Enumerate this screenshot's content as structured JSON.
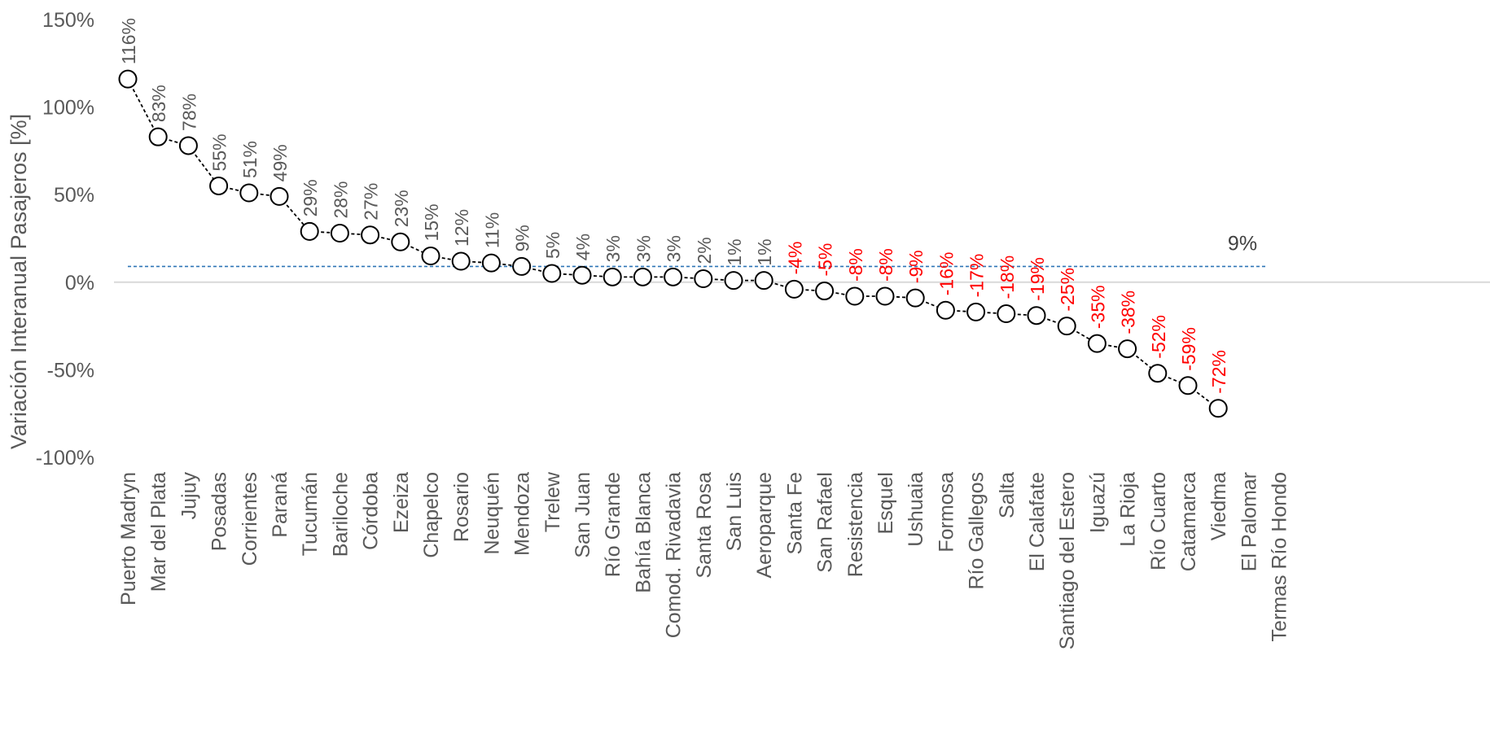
{
  "chart_data": {
    "type": "line",
    "title": "",
    "xlabel": "",
    "ylabel": "Variación Interanual Pasajeros [%]",
    "ylim": [
      -100,
      150
    ],
    "yticks": [
      -100,
      -50,
      0,
      50,
      100,
      150
    ],
    "ytick_labels": [
      "-100%",
      "-50%",
      "0%",
      "50%",
      "100%",
      "150%"
    ],
    "grid": false,
    "categories": [
      "Puerto Madryn",
      "Mar del Plata",
      "Jujuy",
      "Posadas",
      "Corrientes",
      "Paraná",
      "Tucumán",
      "Bariloche",
      "Córdoba",
      "Ezeiza",
      "Chapelco",
      "Rosario",
      "Neuquén",
      "Mendoza",
      "Trelew",
      "San Juan",
      "Río Grande",
      "Bahía Blanca",
      "Comod. Rivadavia",
      "Santa Rosa",
      "San Luis",
      "Aeroparque",
      "Santa Fe",
      "San Rafael",
      "Resistencia",
      "Esquel",
      "Ushuaia",
      "Formosa",
      "Río Gallegos",
      "Salta",
      "El Calafate",
      "Santiago del Estero",
      "Iguazú",
      "La Rioja",
      "Río Cuarto",
      "Catamarca",
      "Viedma",
      "El Palomar",
      "Termas Río Hondo"
    ],
    "series": [
      {
        "values": [
          116,
          83,
          78,
          55,
          51,
          49,
          29,
          28,
          27,
          23,
          15,
          12,
          11,
          9,
          5,
          4,
          3,
          3,
          3,
          2,
          1,
          1,
          -4,
          -5,
          -8,
          -8,
          -9,
          -16,
          -17,
          -18,
          -19,
          -25,
          -35,
          -38,
          -52,
          -59,
          -72,
          null,
          null
        ],
        "labels": [
          "116%",
          "83%",
          "78%",
          "55%",
          "51%",
          "49%",
          "29%",
          "28%",
          "27%",
          "23%",
          "15%",
          "12%",
          "11%",
          "9%",
          "5%",
          "4%",
          "3%",
          "3%",
          "3%",
          "2%",
          "1%",
          "1%",
          "-4%",
          "-5%",
          "-8%",
          "-8%",
          "-9%",
          "-16%",
          "-17%",
          "-18%",
          "-19%",
          "-25%",
          "-35%",
          "-38%",
          "-52%",
          "-59%",
          "-72%",
          "",
          ""
        ]
      }
    ],
    "reference_line": {
      "value": 9,
      "label": "9%",
      "color": "#2e75b6"
    },
    "colors": {
      "positive_label": "#595959",
      "negative_label": "#ff0000",
      "line": "#000000",
      "marker_fill": "#ffffff",
      "axis_text": "#595959",
      "zero_line": "#d9d9d9"
    }
  }
}
